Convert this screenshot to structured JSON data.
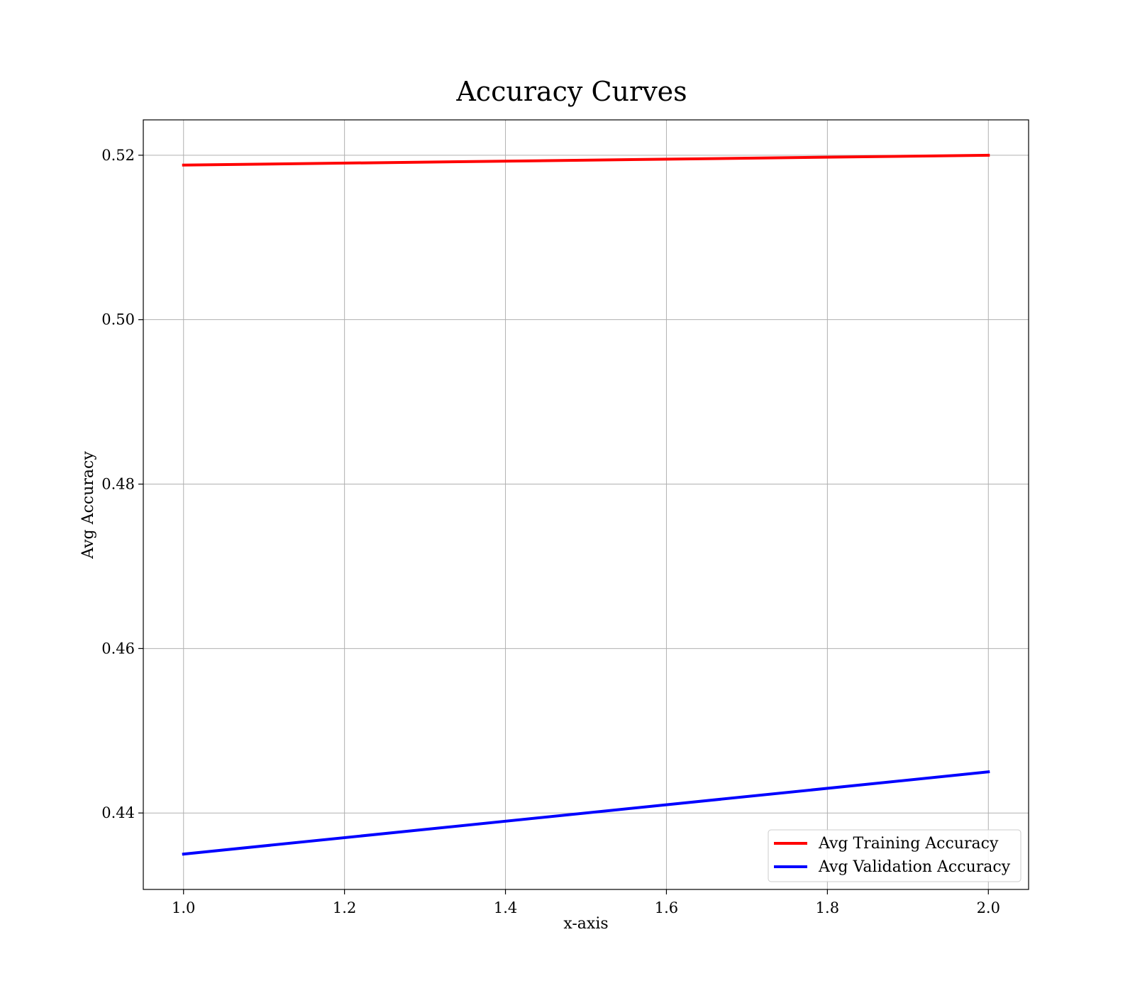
{
  "chart_data": {
    "type": "line",
    "title": "Accuracy Curves",
    "xlabel": "x-axis",
    "ylabel": "Avg Accuracy",
    "xlim": [
      0.95,
      2.05
    ],
    "ylim": [
      0.4307,
      0.5243
    ],
    "xticks": [
      1.0,
      1.2,
      1.4,
      1.6,
      1.8,
      2.0
    ],
    "xtick_labels": [
      "1.0",
      "1.2",
      "1.4",
      "1.6",
      "1.8",
      "2.0"
    ],
    "yticks": [
      0.44,
      0.46,
      0.48,
      0.5,
      0.52
    ],
    "ytick_labels": [
      "0.44",
      "0.46",
      "0.48",
      "0.50",
      "0.52"
    ],
    "grid": true,
    "legend_position": "lower-right",
    "series": [
      {
        "name": "Avg Training Accuracy",
        "color": "#ff0000",
        "x": [
          1.0,
          2.0
        ],
        "y": [
          0.5188,
          0.52
        ]
      },
      {
        "name": "Avg Validation Accuracy",
        "color": "#0000ff",
        "x": [
          1.0,
          2.0
        ],
        "y": [
          0.435,
          0.445
        ]
      }
    ]
  }
}
